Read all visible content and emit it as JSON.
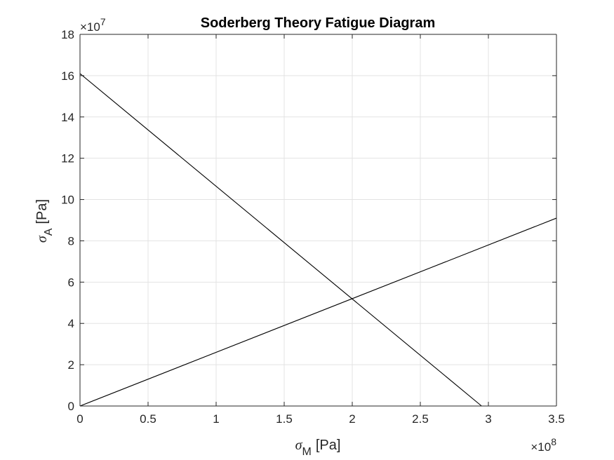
{
  "chart_data": {
    "type": "line",
    "title": "Soderberg Theory Fatigue Diagram",
    "xlabel": {
      "symbol": "σ",
      "subscript": "M",
      "unit": "[Pa]"
    },
    "ylabel": {
      "symbol": "σ",
      "subscript": "A",
      "unit": "[Pa]"
    },
    "x_multiplier": {
      "prefix": "×10",
      "power": "8"
    },
    "y_multiplier": {
      "prefix": "×10",
      "power": "7"
    },
    "xlim": [
      0,
      3.5
    ],
    "ylim": [
      0,
      18
    ],
    "xticks": [
      0,
      0.5,
      1,
      1.5,
      2,
      2.5,
      3,
      3.5
    ],
    "xtick_labels": [
      "0",
      "0.5",
      "1",
      "1.5",
      "2",
      "2.5",
      "3",
      "3.5"
    ],
    "yticks": [
      0,
      2,
      4,
      6,
      8,
      10,
      12,
      14,
      16,
      18
    ],
    "ytick_labels": [
      "0",
      "2",
      "4",
      "6",
      "8",
      "10",
      "12",
      "14",
      "16",
      "18"
    ],
    "grid": true,
    "series": [
      {
        "x": [
          0,
          2.95
        ],
        "y": [
          16.1,
          0
        ],
        "color": "#000000"
      },
      {
        "x": [
          0,
          3.5
        ],
        "y": [
          0,
          9.1
        ],
        "color": "#000000"
      }
    ]
  }
}
